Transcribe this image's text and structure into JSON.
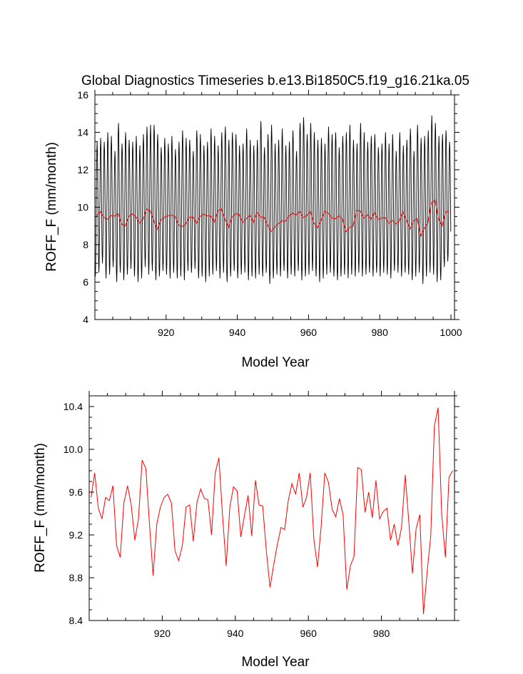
{
  "chart_data": [
    {
      "type": "line",
      "title": "Global Diagnostics Timeseries b.e13.Bi1850C5.f19_g16.21ka.05",
      "xlabel": "Model Year",
      "ylabel": "ROFF_F (mm/month)",
      "xlim": [
        900,
        1001
      ],
      "ylim": [
        4,
        16
      ],
      "xticks": [
        "920",
        "940",
        "960",
        "980",
        "1000"
      ],
      "yticks": [
        "4",
        "6",
        "8",
        "10",
        "12",
        "14",
        "16"
      ],
      "series": [
        {
          "color": "#000000",
          "kind": "monthly",
          "annual_min": [
            6.3,
            6.5,
            7.0,
            6.2,
            6.4,
            6.8,
            6.0,
            6.5,
            6.1,
            6.4,
            6.7,
            6.3,
            6.0,
            6.2,
            6.8,
            6.4,
            6.6,
            6.1,
            6.3,
            6.6,
            6.4,
            6.2,
            6.5,
            6.2,
            6.3,
            6.1,
            6.6,
            6.5,
            6.7,
            6.2,
            6.3,
            6.0,
            6.3,
            6.4,
            6.6,
            6.2,
            6.5,
            6.0,
            6.3,
            6.6,
            6.2,
            6.4,
            6.5,
            6.1,
            6.3,
            6.2,
            6.4,
            6.3,
            6.5,
            5.9,
            6.2,
            6.4,
            6.3,
            6.6,
            6.2,
            6.4,
            6.3,
            6.6,
            6.1,
            6.3,
            6.4,
            6.6,
            6.3,
            6.0,
            6.2,
            6.4,
            6.5,
            6.3,
            6.1,
            6.3,
            6.4,
            6.2,
            6.4,
            6.3,
            6.5,
            6.3,
            6.4,
            6.5,
            6.3,
            6.5,
            6.3,
            6.5,
            6.4,
            6.2,
            6.6,
            6.5,
            6.3,
            6.5,
            6.4,
            6.1,
            6.3,
            6.5,
            5.9,
            6.3,
            6.5,
            6.4,
            6.0,
            6.1,
            6.8,
            7.1
          ],
          "annual_max": [
            13.5,
            13.7,
            13.5,
            14.0,
            13.8,
            13.0,
            14.5,
            13.4,
            14.0,
            13.6,
            13.5,
            13.8,
            13.3,
            13.9,
            14.3,
            14.4,
            14.4,
            13.9,
            13.2,
            13.7,
            13.4,
            13.8,
            13.1,
            13.5,
            14.1,
            13.7,
            13.6,
            13.0,
            14.1,
            13.9,
            13.3,
            13.5,
            14.2,
            13.8,
            13.3,
            14.0,
            14.3,
            13.6,
            14.0,
            13.9,
            13.3,
            13.4,
            14.2,
            13.6,
            13.3,
            13.6,
            14.6,
            13.2,
            13.9,
            14.4,
            13.4,
            13.6,
            14.2,
            13.3,
            13.5,
            14.1,
            13.0,
            14.5,
            14.8,
            13.9,
            14.5,
            14.0,
            13.6,
            13.7,
            13.4,
            14.3,
            13.9,
            14.0,
            13.2,
            13.8,
            14.0,
            14.4,
            13.6,
            13.4,
            14.5,
            14.0,
            13.5,
            13.8,
            13.9,
            13.2,
            13.4,
            14.0,
            13.4,
            13.9,
            13.0,
            14.0,
            13.3,
            13.6,
            14.2,
            13.0,
            14.4,
            13.7,
            13.8,
            14.1,
            14.9,
            14.5,
            13.8,
            13.9,
            14.1,
            13.5
          ]
        },
        {
          "color": "#ff0000",
          "kind": "annual",
          "values": [
            9.55,
            9.78,
            9.45,
            9.35,
            9.55,
            9.52,
            9.66,
            9.1,
            8.99,
            9.5,
            9.66,
            9.48,
            9.15,
            9.35,
            9.9,
            9.82,
            9.3,
            8.82,
            9.3,
            9.46,
            9.55,
            9.58,
            9.5,
            9.05,
            8.96,
            9.1,
            9.46,
            9.48,
            9.14,
            9.5,
            9.63,
            9.54,
            9.53,
            9.2,
            9.78,
            9.92,
            9.38,
            8.91,
            9.46,
            9.65,
            9.61,
            9.18,
            9.38,
            9.57,
            9.19,
            9.71,
            9.48,
            9.47,
            9.05,
            8.71,
            8.92,
            9.11,
            9.27,
            9.25,
            9.52,
            9.68,
            9.58,
            9.78,
            9.46,
            9.55,
            9.78,
            9.16,
            8.9,
            9.28,
            9.78,
            9.69,
            9.44,
            9.37,
            9.54,
            9.39,
            8.69,
            8.91,
            9.0,
            9.83,
            9.81,
            9.41,
            9.6,
            9.36,
            9.71,
            9.35,
            9.42,
            9.45,
            9.15,
            9.3,
            9.1,
            9.27,
            9.76,
            9.32,
            8.84,
            9.26,
            9.39,
            8.46,
            8.85,
            9.19,
            10.22,
            10.39,
            9.39,
            8.99,
            9.74,
            9.8
          ]
        }
      ]
    },
    {
      "type": "line",
      "title": "",
      "xlabel": "Model Year",
      "ylabel": "ROFF_F (mm/month)",
      "xlim": [
        900,
        1000
      ],
      "ylim": [
        8.4,
        10.5
      ],
      "xticks": [
        "920",
        "940",
        "960",
        "980"
      ],
      "yticks": [
        "8.4",
        "8.8",
        "9.2",
        "9.6",
        "10.0",
        "10.4"
      ],
      "series": [
        {
          "color": "#ff0000",
          "kind": "annual",
          "values": [
            9.55,
            9.78,
            9.45,
            9.35,
            9.55,
            9.52,
            9.66,
            9.1,
            8.99,
            9.5,
            9.66,
            9.48,
            9.15,
            9.35,
            9.9,
            9.82,
            9.3,
            8.82,
            9.3,
            9.46,
            9.55,
            9.58,
            9.5,
            9.05,
            8.96,
            9.1,
            9.46,
            9.48,
            9.14,
            9.5,
            9.63,
            9.54,
            9.53,
            9.2,
            9.78,
            9.92,
            9.38,
            8.91,
            9.46,
            9.65,
            9.61,
            9.18,
            9.38,
            9.57,
            9.19,
            9.71,
            9.48,
            9.47,
            9.05,
            8.71,
            8.92,
            9.11,
            9.27,
            9.25,
            9.52,
            9.68,
            9.58,
            9.78,
            9.46,
            9.55,
            9.78,
            9.16,
            8.9,
            9.28,
            9.78,
            9.69,
            9.44,
            9.37,
            9.54,
            9.39,
            8.69,
            8.91,
            9.0,
            9.83,
            9.81,
            9.41,
            9.6,
            9.36,
            9.71,
            9.35,
            9.42,
            9.45,
            9.15,
            9.3,
            9.1,
            9.27,
            9.76,
            9.32,
            8.84,
            9.26,
            9.39,
            8.46,
            8.85,
            9.19,
            10.22,
            10.39,
            9.39,
            8.99,
            9.74,
            9.8
          ]
        }
      ]
    }
  ]
}
